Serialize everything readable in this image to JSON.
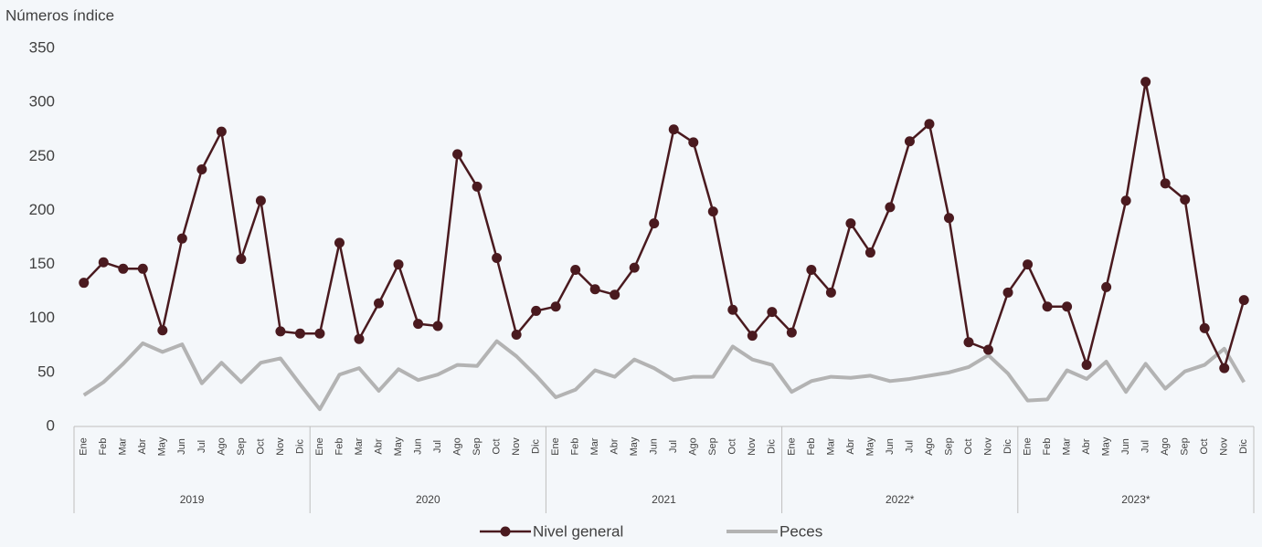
{
  "chart_data": {
    "type": "line",
    "y_label": "Números índice",
    "categories": [
      "Ene",
      "Feb",
      "Mar",
      "Abr",
      "May",
      "Jun",
      "Jul",
      "Ago",
      "Sep",
      "Oct",
      "Nov",
      "Dic",
      "Ene",
      "Feb",
      "Mar",
      "Abr",
      "May",
      "Jun",
      "Jul",
      "Ago",
      "Sep",
      "Oct",
      "Nov",
      "Dic",
      "Ene",
      "Feb",
      "Mar",
      "Abr",
      "May",
      "Jun",
      "Jul",
      "Ago",
      "Sep",
      "Oct",
      "Nov",
      "Dic",
      "Ene",
      "Feb",
      "Mar",
      "Abr",
      "May",
      "Jun",
      "Jul",
      "Ago",
      "Sep",
      "Oct",
      "Nov",
      "Dic",
      "Ene",
      "Feb",
      "Mar",
      "Abr",
      "May",
      "Jun",
      "Jul",
      "Ago",
      "Sep",
      "Oct",
      "Nov",
      "Dic"
    ],
    "groups": [
      "2019",
      "2020",
      "2021",
      "2022*",
      "2023*"
    ],
    "series": [
      {
        "name": "Nivel general",
        "color": "#4a1a1f",
        "marker": true,
        "values": [
          133,
          152,
          146,
          146,
          89,
          174,
          238,
          273,
          155,
          209,
          88,
          86,
          86,
          170,
          81,
          114,
          150,
          95,
          93,
          252,
          222,
          156,
          85,
          107,
          111,
          145,
          127,
          122,
          147,
          188,
          275,
          263,
          199,
          108,
          84,
          106,
          87,
          145,
          124,
          188,
          161,
          203,
          264,
          280,
          193,
          78,
          71,
          124,
          150,
          111,
          111,
          57,
          129,
          209,
          319,
          225,
          210,
          91,
          54,
          117
        ]
      },
      {
        "name": "Peces",
        "color": "#b3b3b3",
        "marker": false,
        "values": [
          29,
          41,
          58,
          77,
          69,
          76,
          40,
          59,
          41,
          59,
          63,
          39,
          16,
          48,
          54,
          33,
          53,
          43,
          48,
          57,
          56,
          79,
          65,
          47,
          27,
          34,
          52,
          46,
          62,
          54,
          43,
          46,
          46,
          74,
          62,
          57,
          32,
          42,
          46,
          45,
          47,
          42,
          44,
          47,
          50,
          55,
          66,
          49,
          24,
          25,
          52,
          44,
          60,
          32,
          58,
          35,
          51,
          57,
          72,
          41
        ]
      }
    ],
    "ylim": [
      0,
      350
    ],
    "yticks": [
      0,
      50,
      100,
      150,
      200,
      250,
      300,
      350
    ],
    "grid": false
  }
}
